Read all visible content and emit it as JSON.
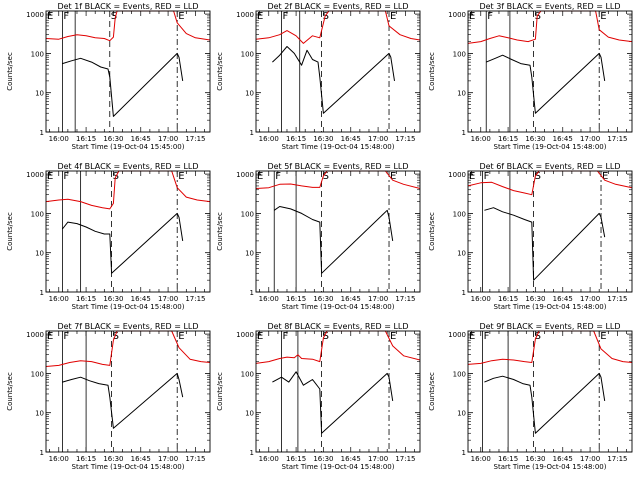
{
  "figure": {
    "common": {
      "ylabel": "Counts/sec",
      "xlabel_default": "Start Time (19-Oct-04 15:48:00)",
      "yticks": [
        "1",
        "10",
        "100",
        "1000"
      ],
      "xticks": [
        "16:00",
        "16:15",
        "16:30",
        "16:45",
        "17:00",
        "17:15"
      ],
      "marker_labels": [
        "E",
        "F",
        "S",
        "E"
      ],
      "colors": {
        "events": "#000000",
        "lld": "#e00000",
        "axes": "#000000"
      }
    }
  },
  "chart_data": [
    {
      "type": "line",
      "title": "Det 1f BLACK = Events, RED = LLD",
      "xlabel": "Start Time (19-Oct-04 15:45:00)",
      "ylabel": "Counts/sec",
      "y_scale": "log",
      "ylim": [
        1,
        1200
      ],
      "xlim": [
        "15:53",
        "17:23"
      ],
      "x_ticks": [
        "16:00",
        "16:15",
        "16:30",
        "16:45",
        "17:00",
        "17:15"
      ],
      "markers": {
        "E1": "15:53",
        "F1": "16:02",
        "F2": "16:09",
        "S": "16:28",
        "E2": "17:05"
      },
      "series": [
        {
          "name": "Events",
          "color": "#000000",
          "x": [
            "16:02",
            "16:07",
            "16:12",
            "16:18",
            "16:23",
            "16:27",
            "16:28",
            "16:30",
            "17:05",
            "17:06",
            "17:08"
          ],
          "y": [
            55,
            65,
            75,
            60,
            45,
            40,
            25,
            2.5,
            100,
            80,
            20
          ]
        },
        {
          "name": "LLD",
          "color": "#e00000",
          "x": [
            "15:53",
            "16:00",
            "16:05",
            "16:10",
            "16:15",
            "16:20",
            "16:25",
            "16:28",
            "16:30",
            "16:31",
            "16:32",
            "16:33",
            "17:03",
            "17:05",
            "17:10",
            "17:15",
            "17:23"
          ],
          "y": [
            240,
            230,
            270,
            300,
            280,
            250,
            240,
            210,
            260,
            800,
            1200,
            1200,
            1200,
            600,
            320,
            250,
            220
          ]
        }
      ]
    },
    {
      "type": "line",
      "title": "Det 2f BLACK = Events, RED = LLD",
      "xlabel": "Start Time (19-Oct-04 15:48:00)",
      "ylabel": "Counts/sec",
      "y_scale": "log",
      "ylim": [
        1,
        1200
      ],
      "xlim": [
        "15:53",
        "17:23"
      ],
      "x_ticks": [
        "16:00",
        "16:15",
        "16:30",
        "16:45",
        "17:00",
        "17:15"
      ],
      "markers": {
        "E1": "15:53",
        "F1": "16:07",
        "F2": "16:17",
        "S": "16:29",
        "E2": "17:06"
      },
      "series": [
        {
          "name": "Events",
          "color": "#000000",
          "x": [
            "16:02",
            "16:06",
            "16:10",
            "16:14",
            "16:18",
            "16:21",
            "16:24",
            "16:27",
            "16:28",
            "16:30",
            "17:06",
            "17:07",
            "17:09"
          ],
          "y": [
            60,
            90,
            150,
            100,
            50,
            120,
            70,
            60,
            25,
            3,
            100,
            80,
            20
          ]
        },
        {
          "name": "LLD",
          "color": "#e00000",
          "x": [
            "15:53",
            "16:00",
            "16:06",
            "16:10",
            "16:15",
            "16:19",
            "16:24",
            "16:28",
            "16:31",
            "16:33",
            "17:04",
            "17:06",
            "17:12",
            "17:18",
            "17:23"
          ],
          "y": [
            230,
            250,
            300,
            380,
            280,
            180,
            280,
            250,
            900,
            1200,
            1200,
            500,
            300,
            240,
            220
          ]
        }
      ]
    },
    {
      "type": "line",
      "title": "Det 3f BLACK = Events, RED = LLD",
      "xlabel": "Start Time (19-Oct-04 15:48:00)",
      "ylabel": "Counts/sec",
      "y_scale": "log",
      "ylim": [
        1,
        1200
      ],
      "xlim": [
        "15:53",
        "17:23"
      ],
      "x_ticks": [
        "16:00",
        "16:15",
        "16:30",
        "16:45",
        "17:00",
        "17:15"
      ],
      "markers": {
        "E1": "15:53",
        "F1": "16:03",
        "F2": "16:16",
        "S": "16:29",
        "E2": "17:05"
      },
      "series": [
        {
          "name": "Events",
          "color": "#000000",
          "x": [
            "16:03",
            "16:08",
            "16:12",
            "16:17",
            "16:22",
            "16:27",
            "16:28",
            "16:30",
            "17:05",
            "17:06",
            "17:08"
          ],
          "y": [
            60,
            75,
            90,
            70,
            55,
            50,
            25,
            3,
            100,
            80,
            20
          ]
        },
        {
          "name": "LLD",
          "color": "#e00000",
          "x": [
            "15:53",
            "16:00",
            "16:05",
            "16:10",
            "16:15",
            "16:20",
            "16:26",
            "16:30",
            "16:31",
            "16:33",
            "17:03",
            "17:05",
            "17:10",
            "17:16",
            "17:23"
          ],
          "y": [
            180,
            200,
            240,
            280,
            250,
            220,
            200,
            230,
            900,
            1200,
            1200,
            400,
            260,
            220,
            200
          ]
        }
      ]
    },
    {
      "type": "line",
      "title": "Det 4f BLACK = Events, RED = LLD",
      "xlabel": "Start Time (19-Oct-04 15:48:00)",
      "ylabel": "Counts/sec",
      "y_scale": "log",
      "ylim": [
        1,
        1200
      ],
      "xlim": [
        "15:53",
        "17:23"
      ],
      "x_ticks": [
        "16:00",
        "16:15",
        "16:30",
        "16:45",
        "17:00",
        "17:15"
      ],
      "markers": {
        "E1": "15:53",
        "F1": "16:02",
        "F2": "16:12",
        "S": "16:29",
        "E2": "17:05"
      },
      "series": [
        {
          "name": "Events",
          "color": "#000000",
          "x": [
            "16:02",
            "16:05",
            "16:10",
            "16:15",
            "16:20",
            "16:25",
            "16:28",
            "16:29",
            "17:05",
            "17:06",
            "17:08"
          ],
          "y": [
            40,
            60,
            55,
            45,
            35,
            30,
            30,
            3,
            100,
            80,
            20
          ]
        },
        {
          "name": "LLD",
          "color": "#e00000",
          "x": [
            "15:53",
            "16:00",
            "16:05",
            "16:12",
            "16:18",
            "16:24",
            "16:28",
            "16:30",
            "16:31",
            "16:33",
            "17:02",
            "17:05",
            "17:10",
            "17:16",
            "17:23"
          ],
          "y": [
            200,
            220,
            230,
            200,
            160,
            140,
            130,
            180,
            800,
            1200,
            1200,
            450,
            260,
            220,
            200
          ]
        }
      ]
    },
    {
      "type": "line",
      "title": "Det 5f BLACK = Events, RED = LLD",
      "xlabel": "Start Time (19-Oct-04 15:48:00)",
      "ylabel": "Counts/sec",
      "y_scale": "log",
      "ylim": [
        1,
        1200
      ],
      "xlim": [
        "15:53",
        "17:23"
      ],
      "x_ticks": [
        "16:00",
        "16:15",
        "16:30",
        "16:45",
        "17:00",
        "17:15"
      ],
      "markers": {
        "E1": "15:53",
        "F1": "16:03",
        "F2": "16:15",
        "S": "16:29",
        "E2": "17:06"
      },
      "series": [
        {
          "name": "Events",
          "color": "#000000",
          "x": [
            "16:03",
            "16:06",
            "16:12",
            "16:18",
            "16:24",
            "16:28",
            "16:29",
            "17:05",
            "17:06",
            "17:08"
          ],
          "y": [
            120,
            150,
            130,
            100,
            70,
            60,
            3,
            120,
            80,
            20
          ]
        },
        {
          "name": "LLD",
          "color": "#e00000",
          "x": [
            "15:53",
            "16:00",
            "16:06",
            "16:12",
            "16:18",
            "16:24",
            "16:28",
            "16:30",
            "16:32",
            "17:04",
            "17:08",
            "17:14",
            "17:23"
          ],
          "y": [
            430,
            450,
            550,
            560,
            500,
            460,
            460,
            900,
            1200,
            1200,
            700,
            550,
            430
          ]
        }
      ]
    },
    {
      "type": "line",
      "title": "Det 6f BLACK = Events, RED = LLD",
      "xlabel": "Start Time (19-Oct-04 15:48:00)",
      "ylabel": "Counts/sec",
      "y_scale": "log",
      "ylim": [
        1,
        1200
      ],
      "xlim": [
        "15:53",
        "17:23"
      ],
      "x_ticks": [
        "16:00",
        "16:15",
        "16:30",
        "16:45",
        "17:00",
        "17:15"
      ],
      "markers": {
        "E1": "15:53",
        "F1": "16:01",
        "F2": "16:16",
        "S": "16:29",
        "E2": "17:06"
      },
      "series": [
        {
          "name": "Events",
          "color": "#000000",
          "x": [
            "16:02",
            "16:07",
            "16:12",
            "16:18",
            "16:24",
            "16:28",
            "16:29",
            "17:05",
            "17:06",
            "17:08"
          ],
          "y": [
            120,
            140,
            110,
            90,
            70,
            60,
            2,
            100,
            80,
            25
          ]
        },
        {
          "name": "LLD",
          "color": "#e00000",
          "x": [
            "15:53",
            "16:00",
            "16:06",
            "16:12",
            "16:18",
            "16:24",
            "16:28",
            "16:30",
            "16:32",
            "17:04",
            "17:08",
            "17:14",
            "17:23"
          ],
          "y": [
            500,
            600,
            620,
            480,
            380,
            330,
            300,
            900,
            1200,
            1200,
            700,
            550,
            450
          ]
        }
      ]
    },
    {
      "type": "line",
      "title": "Det 7f BLACK = Events, RED = LLD",
      "xlabel": "Start Time (19-Oct-04 15:48:00)",
      "ylabel": "Counts/sec",
      "y_scale": "log",
      "ylim": [
        1,
        1200
      ],
      "xlim": [
        "15:53",
        "17:23"
      ],
      "x_ticks": [
        "16:00",
        "16:15",
        "16:30",
        "16:45",
        "17:00",
        "17:15"
      ],
      "markers": {
        "E1": "15:53",
        "F1": "16:02",
        "F2": "16:15",
        "S": "16:29",
        "E2": "17:05"
      },
      "series": [
        {
          "name": "Events",
          "color": "#000000",
          "x": [
            "16:02",
            "16:07",
            "16:12",
            "16:17",
            "16:22",
            "16:27",
            "16:28",
            "16:30",
            "17:05",
            "17:06",
            "17:08"
          ],
          "y": [
            60,
            70,
            80,
            65,
            55,
            50,
            25,
            4,
            100,
            70,
            25
          ]
        },
        {
          "name": "LLD",
          "color": "#e00000",
          "x": [
            "15:53",
            "16:00",
            "16:06",
            "16:12",
            "16:18",
            "16:24",
            "16:28",
            "16:30",
            "16:32",
            "17:02",
            "17:06",
            "17:12",
            "17:18",
            "17:23"
          ],
          "y": [
            150,
            160,
            190,
            210,
            200,
            170,
            160,
            700,
            1200,
            1200,
            450,
            230,
            200,
            190
          ]
        }
      ]
    },
    {
      "type": "line",
      "title": "Det 8f BLACK = Events, RED = LLD",
      "xlabel": "Start Time (19-Oct-04 15:48:00)",
      "ylabel": "Counts/sec",
      "y_scale": "log",
      "ylim": [
        1,
        1200
      ],
      "xlim": [
        "15:53",
        "17:23"
      ],
      "x_ticks": [
        "16:00",
        "16:15",
        "16:30",
        "16:45",
        "17:00",
        "17:15"
      ],
      "markers": {
        "E1": "15:53",
        "F1": "16:07",
        "F2": "16:16",
        "S": "16:29",
        "E2": "17:06"
      },
      "series": [
        {
          "name": "Events",
          "color": "#000000",
          "x": [
            "16:02",
            "16:07",
            "16:11",
            "16:15",
            "16:19",
            "16:24",
            "16:28",
            "16:29",
            "17:05",
            "17:06",
            "17:08"
          ],
          "y": [
            60,
            80,
            60,
            110,
            50,
            70,
            40,
            3,
            100,
            80,
            20
          ]
        },
        {
          "name": "LLD",
          "color": "#e00000",
          "x": [
            "15:53",
            "16:00",
            "16:06",
            "16:10",
            "16:14",
            "16:16",
            "16:18",
            "16:24",
            "16:28",
            "16:30",
            "16:32",
            "17:04",
            "17:08",
            "17:14",
            "17:23"
          ],
          "y": [
            180,
            200,
            240,
            260,
            250,
            300,
            240,
            230,
            200,
            800,
            1200,
            1200,
            500,
            280,
            220
          ]
        }
      ]
    },
    {
      "type": "line",
      "title": "Det 9f BLACK = Events, RED = LLD",
      "xlabel": "Start Time (19-Oct-04 15:48:00)",
      "ylabel": "Counts/sec",
      "y_scale": "log",
      "ylim": [
        1,
        1200
      ],
      "xlim": [
        "15:53",
        "17:23"
      ],
      "x_ticks": [
        "16:00",
        "16:15",
        "16:30",
        "16:45",
        "17:00",
        "17:15"
      ],
      "markers": {
        "E1": "15:53",
        "F1": "16:01",
        "F2": "16:15",
        "S": "16:29",
        "E2": "17:05"
      },
      "series": [
        {
          "name": "Events",
          "color": "#000000",
          "x": [
            "16:02",
            "16:07",
            "16:12",
            "16:18",
            "16:23",
            "16:27",
            "16:28",
            "16:30",
            "17:05",
            "17:06",
            "17:08"
          ],
          "y": [
            60,
            75,
            85,
            70,
            55,
            50,
            25,
            3,
            100,
            80,
            20
          ]
        },
        {
          "name": "LLD",
          "color": "#e00000",
          "x": [
            "15:53",
            "16:00",
            "16:06",
            "16:12",
            "16:18",
            "16:24",
            "16:28",
            "16:30",
            "16:32",
            "17:02",
            "17:06",
            "17:12",
            "17:18",
            "17:23"
          ],
          "y": [
            170,
            180,
            210,
            230,
            220,
            200,
            190,
            750,
            1200,
            1200,
            420,
            240,
            200,
            190
          ]
        }
      ]
    }
  ]
}
